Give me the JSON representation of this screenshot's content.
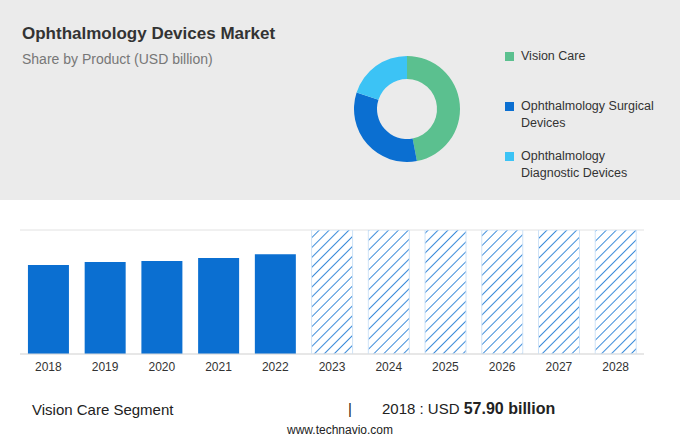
{
  "chart_data": [
    {
      "type": "pie",
      "title": "Ophthalmology Devices Market",
      "subtitle": "Share by Product (USD billion)",
      "categories": [
        "Vision Care",
        "Ophthalmology Surgical Devices",
        "Ophthalmology Diagnostic Devices"
      ],
      "values": [
        47,
        33,
        20
      ],
      "colors": [
        "#5bc08f",
        "#0b6fd1",
        "#3cc3f5"
      ],
      "legend": "right"
    },
    {
      "type": "bar",
      "categories": [
        "2018",
        "2019",
        "2020",
        "2021",
        "2022",
        "2023",
        "2024",
        "2025",
        "2026",
        "2027",
        "2028"
      ],
      "series": [
        {
          "color": "#0b6fd1",
          "values": [
            5.75,
            5.94,
            6.0,
            6.19,
            6.44,
            null,
            null,
            null,
            null,
            null,
            null
          ]
        },
        {
          "color": "#0b6fd1",
          "line_style": "hatched",
          "values": [
            null,
            null,
            null,
            null,
            null,
            8,
            8,
            8,
            8,
            8,
            8
          ]
        }
      ],
      "ylim": [
        0,
        8
      ],
      "yticks": [
        0,
        1,
        2,
        3,
        4,
        5,
        6,
        7,
        8
      ],
      "grid": true,
      "tick_labels": "x"
    }
  ],
  "footer": {
    "segment": "Vision Care Segment",
    "separator": "|",
    "year_label": "2018 : USD",
    "value": "57.90 billion",
    "source": "www.technavio.com"
  }
}
